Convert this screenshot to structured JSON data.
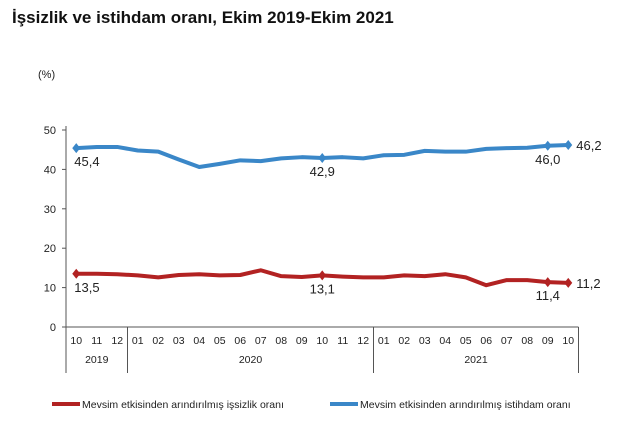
{
  "chart_data": {
    "type": "line",
    "title": "İşsizlik ve istihdam oranı, Ekim 2019-Ekim 2021",
    "ylabel": "(%)",
    "ylim": [
      0,
      50
    ],
    "yticks": [
      "0",
      "10",
      "20",
      "30",
      "40",
      "50"
    ],
    "months": [
      "10",
      "11",
      "12",
      "01",
      "02",
      "03",
      "04",
      "05",
      "06",
      "07",
      "08",
      "09",
      "10",
      "11",
      "12",
      "01",
      "02",
      "03",
      "04",
      "05",
      "06",
      "07",
      "08",
      "09",
      "10"
    ],
    "years": [
      {
        "label": "2019",
        "start": 0,
        "end": 3
      },
      {
        "label": "2020",
        "start": 3,
        "end": 15
      },
      {
        "label": "2021",
        "start": 15,
        "end": 25
      }
    ],
    "series": [
      {
        "name": "Mevsim etkisinden arındırılmış işsizlik oranı",
        "color": "#b22222",
        "values": [
          13.5,
          13.5,
          13.4,
          13.1,
          12.6,
          13.2,
          13.4,
          13.1,
          13.2,
          14.4,
          12.9,
          12.7,
          13.1,
          12.8,
          12.6,
          12.6,
          13.1,
          12.9,
          13.4,
          12.6,
          10.6,
          11.9,
          11.9,
          11.4,
          11.2
        ],
        "labels": [
          {
            "i": 0,
            "text": "13,5"
          },
          {
            "i": 12,
            "text": "13,1"
          },
          {
            "i": 23,
            "text": "11,4"
          },
          {
            "i": 24,
            "text": "11,2"
          }
        ]
      },
      {
        "name": "Mevsim etkisinden arındırılmış istihdam oranı",
        "color": "#3a87c8",
        "values": [
          45.4,
          45.7,
          45.7,
          44.8,
          44.5,
          42.5,
          40.6,
          41.4,
          42.3,
          42.1,
          42.8,
          43.1,
          42.9,
          43.1,
          42.8,
          43.6,
          43.7,
          44.7,
          44.5,
          44.5,
          45.2,
          45.4,
          45.5,
          46.0,
          46.2
        ],
        "labels": [
          {
            "i": 0,
            "text": "45,4"
          },
          {
            "i": 12,
            "text": "42,9"
          },
          {
            "i": 23,
            "text": "46,0"
          },
          {
            "i": 24,
            "text": "46,2"
          }
        ]
      }
    ],
    "legend": "bottom"
  }
}
